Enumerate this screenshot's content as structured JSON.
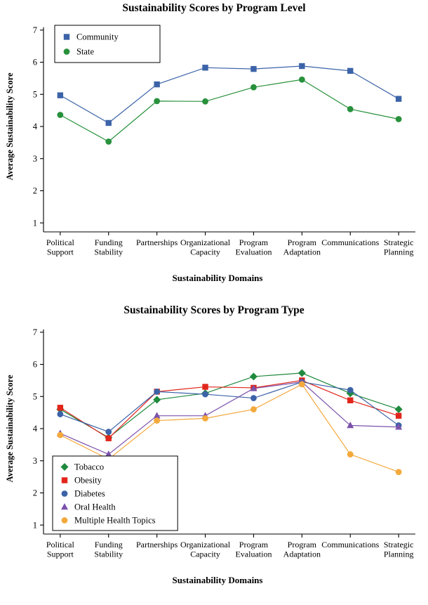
{
  "page": {
    "background": "#ffffff",
    "text_color": "#000000"
  },
  "chart_data": [
    {
      "type": "line",
      "title": "Sustainability Scores by Program Level",
      "xlabel": "Sustainability Domains",
      "ylabel": "Average Sustainability Score",
      "ylim": [
        1,
        7
      ],
      "yticks": [
        1,
        2,
        3,
        4,
        5,
        6,
        7
      ],
      "grid": false,
      "legend": "top-left",
      "categories": [
        [
          "Political",
          "Support"
        ],
        [
          "Funding",
          "Stability"
        ],
        [
          "Partnerships"
        ],
        [
          "Organizational",
          "Capacity"
        ],
        [
          "Program",
          "Evaluation"
        ],
        [
          "Program",
          "Adaptation"
        ],
        [
          "Communications"
        ],
        [
          "Strategic",
          "Planning"
        ]
      ],
      "series": [
        {
          "name": "Community",
          "marker": "square",
          "color": "#3C63A8",
          "values": [
            4.97,
            4.11,
            5.31,
            5.83,
            5.79,
            5.88,
            5.73,
            4.86
          ]
        },
        {
          "name": "State",
          "marker": "circle",
          "color": "#28913C",
          "values": [
            4.36,
            3.53,
            4.79,
            4.78,
            5.22,
            5.46,
            4.54,
            4.23
          ]
        }
      ]
    },
    {
      "type": "line",
      "title": "Sustainability Scores by Program Type",
      "xlabel": "Sustainability Domains",
      "ylabel": "Average Sustainability Score",
      "ylim": [
        1,
        7
      ],
      "yticks": [
        1,
        2,
        3,
        4,
        5,
        6,
        7
      ],
      "grid": false,
      "legend": "bottom-left",
      "categories": [
        [
          "Political",
          "Support"
        ],
        [
          "Funding",
          "Stability"
        ],
        [
          "Partnerships"
        ],
        [
          "Organizational",
          "Capacity"
        ],
        [
          "Program",
          "Evaluation"
        ],
        [
          "Program",
          "Adaptation"
        ],
        [
          "Communications"
        ],
        [
          "Strategic",
          "Planning"
        ]
      ],
      "series": [
        {
          "name": "Tobacco",
          "marker": "diamond",
          "color": "#1F8A3D",
          "values": [
            4.6,
            3.72,
            4.9,
            5.1,
            5.62,
            5.73,
            5.1,
            4.6
          ]
        },
        {
          "name": "Obesity",
          "marker": "square",
          "color": "#E1251B",
          "values": [
            4.65,
            3.7,
            5.15,
            5.3,
            5.27,
            5.5,
            4.88,
            4.4
          ]
        },
        {
          "name": "Diabetes",
          "marker": "circle",
          "color": "#3C63A8",
          "values": [
            4.45,
            3.9,
            5.15,
            5.07,
            4.95,
            5.45,
            5.2,
            4.1
          ]
        },
        {
          "name": "Oral Health",
          "marker": "triangle",
          "color": "#7B52AB",
          "values": [
            3.85,
            3.2,
            4.4,
            4.4,
            5.25,
            5.45,
            4.1,
            4.05
          ]
        },
        {
          "name": "Multiple Health Topics",
          "marker": "circle",
          "color": "#F4A93C",
          "values": [
            3.8,
            3.05,
            4.25,
            4.32,
            4.6,
            5.38,
            3.2,
            2.65
          ]
        }
      ]
    }
  ]
}
